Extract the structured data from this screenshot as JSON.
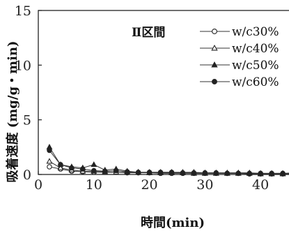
{
  "chart_data": {
    "type": "line",
    "annotation": "Ⅱ区間",
    "xlabel": "時間(min)",
    "ylabel": "吸着速度 (mg/g・min)",
    "xlim": [
      0,
      47
    ],
    "ylim": [
      0,
      15
    ],
    "xticks": [
      "0",
      "10",
      "20",
      "30",
      "40"
    ],
    "yticks": [
      "0",
      "5",
      "10",
      "15"
    ],
    "grid": false,
    "legend_position": "top-right",
    "x": [
      2,
      4,
      6,
      8,
      10,
      12,
      14,
      16,
      18,
      20,
      22,
      24,
      26,
      28,
      30,
      32,
      34,
      36,
      38,
      40,
      42,
      44,
      46
    ],
    "series": [
      {
        "name": "w/c30%",
        "marker": "open-circle",
        "values": [
          0.7,
          0.5,
          0.3,
          0.25,
          0.2,
          0.2,
          0.2,
          0.15,
          0.15,
          0.15,
          0.1,
          0.1,
          0.1,
          0.1,
          0.1,
          0.1,
          0.1,
          0.1,
          0.05,
          0.05,
          0.05,
          0.05,
          0.05
        ]
      },
      {
        "name": "w/c40%",
        "marker": "open-triangle",
        "values": [
          1.2,
          0.6,
          0.4,
          0.3,
          0.3,
          0.25,
          0.2,
          0.2,
          0.2,
          0.15,
          0.15,
          0.15,
          0.15,
          0.1,
          0.1,
          0.1,
          0.1,
          0.1,
          0.1,
          0.05,
          0.05,
          0.05,
          0.05
        ]
      },
      {
        "name": "w/c50%",
        "marker": "filled-triangle",
        "values": [
          2.5,
          0.9,
          0.7,
          0.6,
          0.9,
          0.4,
          0.5,
          0.3,
          0.2,
          0.2,
          0.2,
          0.2,
          0.2,
          0.2,
          0.15,
          0.15,
          0.15,
          0.15,
          0.15,
          0.1,
          0.1,
          0.1,
          0.15
        ]
      },
      {
        "name": "w/c60%",
        "marker": "filled-circle",
        "values": [
          2.2,
          0.9,
          0.6,
          0.5,
          0.35,
          0.3,
          0.35,
          0.25,
          0.2,
          0.2,
          0.2,
          0.2,
          0.15,
          0.15,
          0.15,
          0.15,
          0.1,
          0.1,
          0.1,
          0.1,
          0.1,
          0.1,
          0.05
        ]
      }
    ]
  }
}
